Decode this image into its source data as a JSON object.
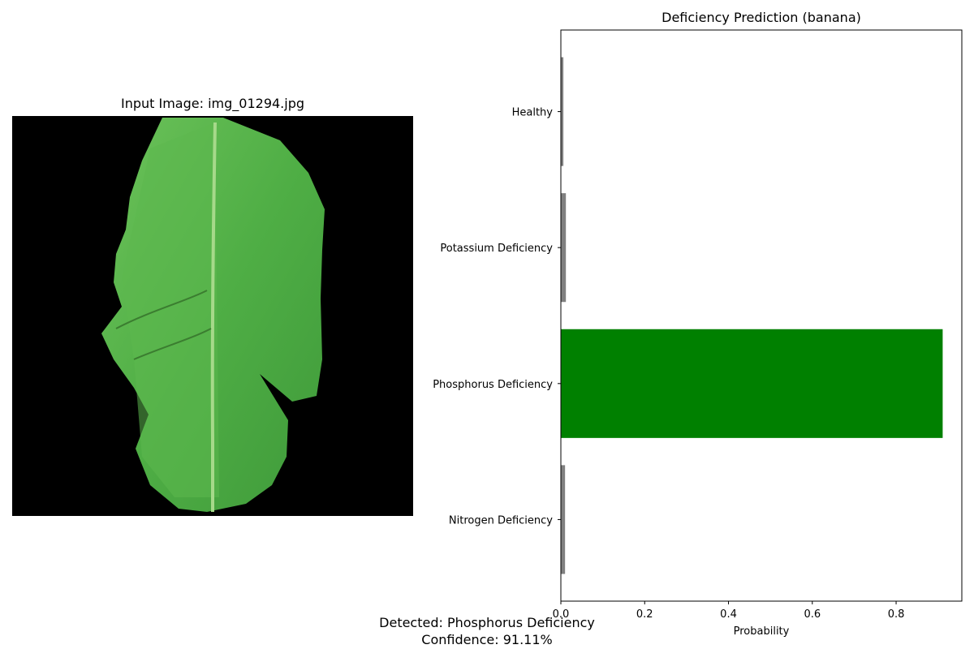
{
  "image_panel": {
    "title": "Input Image: img_01294.jpg",
    "image_icon": "banana-leaf-photo"
  },
  "summary": {
    "detected_text": "Detected: Phosphorus Deficiency",
    "confidence_text": "Confidence: 91.11%"
  },
  "chart_data": {
    "type": "bar",
    "orientation": "horizontal",
    "title": "Deficiency Prediction (banana)",
    "xlabel": "Probability",
    "ylabel": "",
    "categories": [
      "Nitrogen Deficiency",
      "Phosphorus Deficiency",
      "Potassium Deficiency",
      "Healthy"
    ],
    "values": [
      0.01,
      0.9111,
      0.012,
      0.006
    ],
    "bar_colors": [
      "#808080",
      "#008000",
      "#808080",
      "#808080"
    ],
    "xlim": [
      0,
      0.9568
    ],
    "xticks": [
      0.0,
      0.2,
      0.4,
      0.6,
      0.8
    ],
    "xtick_labels": [
      "0.0",
      "0.2",
      "0.4",
      "0.6",
      "0.8"
    ],
    "grid": false,
    "legend": "none"
  }
}
